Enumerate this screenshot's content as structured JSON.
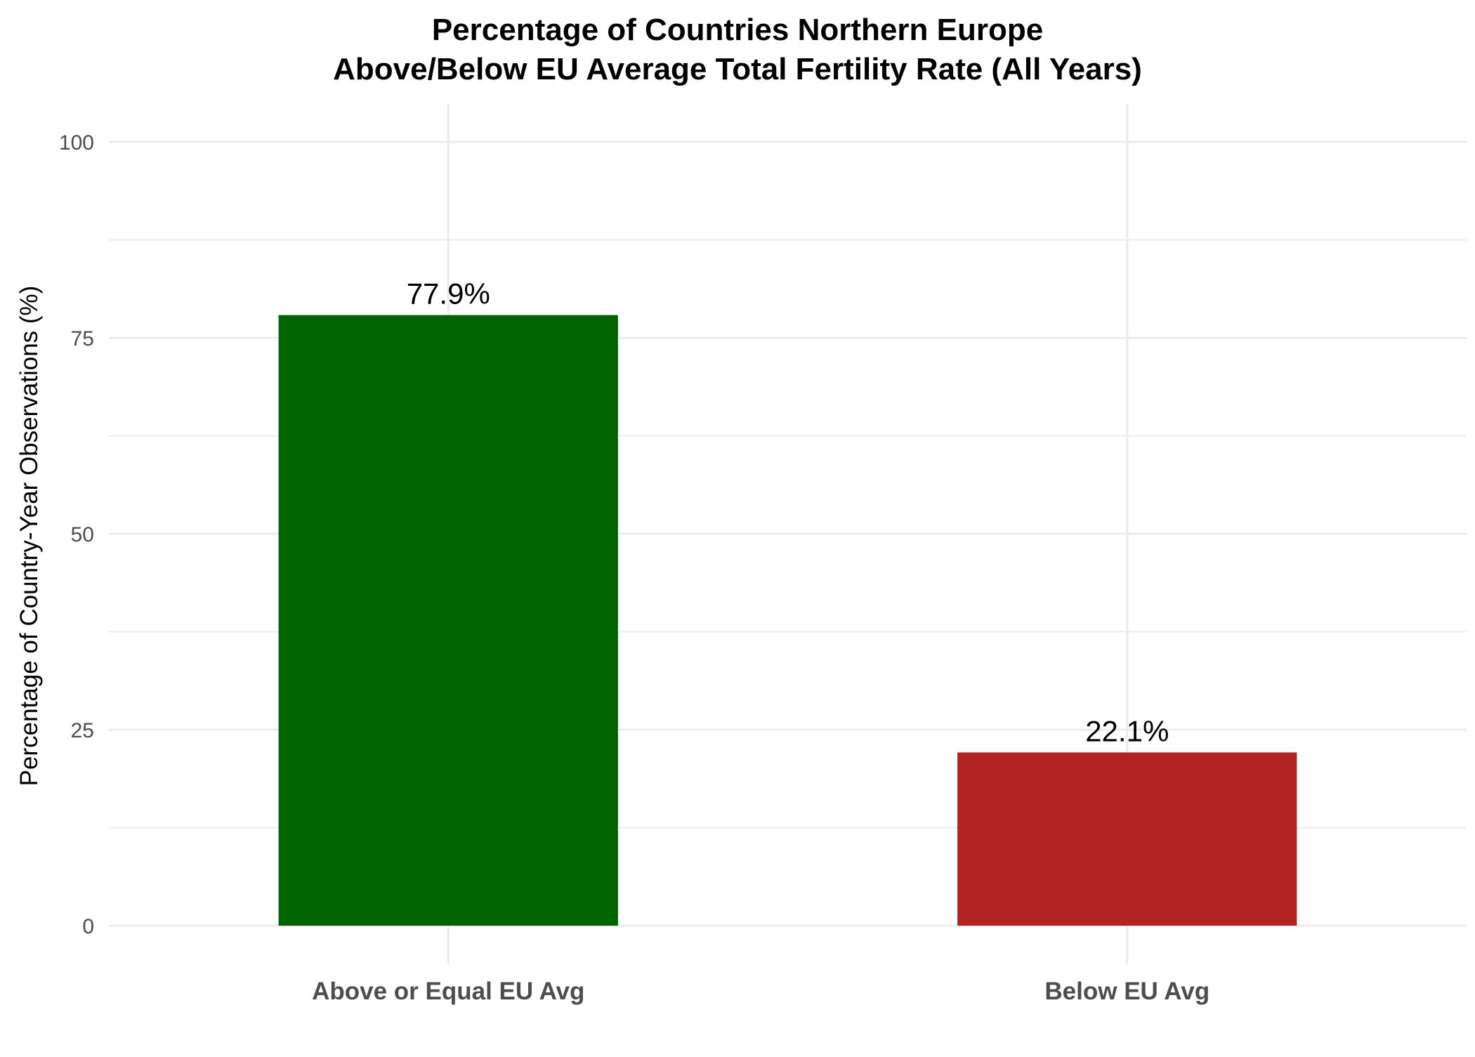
{
  "chart_data": {
    "type": "bar",
    "title_lines": [
      "Percentage of Countries Northern Europe",
      "Above/Below EU Average Total Fertility Rate (All Years)"
    ],
    "xlabel": "",
    "ylabel": "Percentage of Country-Year Observations (%)",
    "categories": [
      "Above or Equal EU Avg",
      "Below EU Avg"
    ],
    "values": [
      77.9,
      22.1
    ],
    "data_labels": [
      "77.9%",
      "22.1%"
    ],
    "colors": [
      "#006400",
      "#b22222"
    ],
    "ylim": [
      0,
      100
    ],
    "y_ticks": [
      0,
      25,
      50,
      75,
      100
    ],
    "y_tick_labels": [
      "0",
      "25",
      "50",
      "75",
      "100"
    ],
    "grid": true,
    "legend": "none"
  }
}
